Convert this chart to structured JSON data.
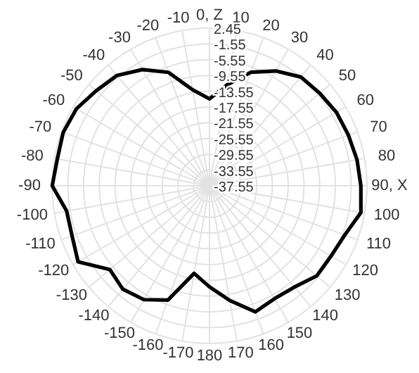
{
  "chart_data": {
    "type": "radar",
    "categories": [
      "0, Z",
      "10",
      "20",
      "30",
      "40",
      "50",
      "60",
      "70",
      "80",
      "90, X",
      "100",
      "110",
      "120",
      "130",
      "140",
      "150",
      "160",
      "170",
      "180",
      "-170",
      "-160",
      "-150",
      "-140",
      "-130",
      "-120",
      "-110",
      "-100",
      "-90",
      "-80",
      "-70",
      "-60",
      "-50",
      "-40",
      "-30",
      "-20",
      "-10"
    ],
    "ylim": [
      -37.55,
      2.45
    ],
    "yticks": [
      2.45,
      -1.55,
      -5.55,
      -9.55,
      -13.55,
      -17.55,
      -21.55,
      -25.55,
      -29.55,
      -33.55,
      -37.55
    ],
    "grid": true,
    "series": [
      {
        "color": "#000000",
        "values": [
          -15.5,
          -11.5,
          -6.9,
          -3.9,
          -1.5,
          -1.0,
          -0.3,
          0.0,
          0.5,
          0.9,
          1.5,
          -1.0,
          -1.9,
          -2.0,
          -4.0,
          -4.5,
          -3.5,
          -8.0,
          -11.9,
          -15.0,
          -6.7,
          -4.2,
          -3.3,
          -4.5,
          1.0,
          -0.4,
          -0.7,
          2.4,
          1.7,
          2.0,
          1.5,
          0.0,
          -1.0,
          -3.5,
          -6.9,
          -12.8
        ]
      }
    ]
  }
}
